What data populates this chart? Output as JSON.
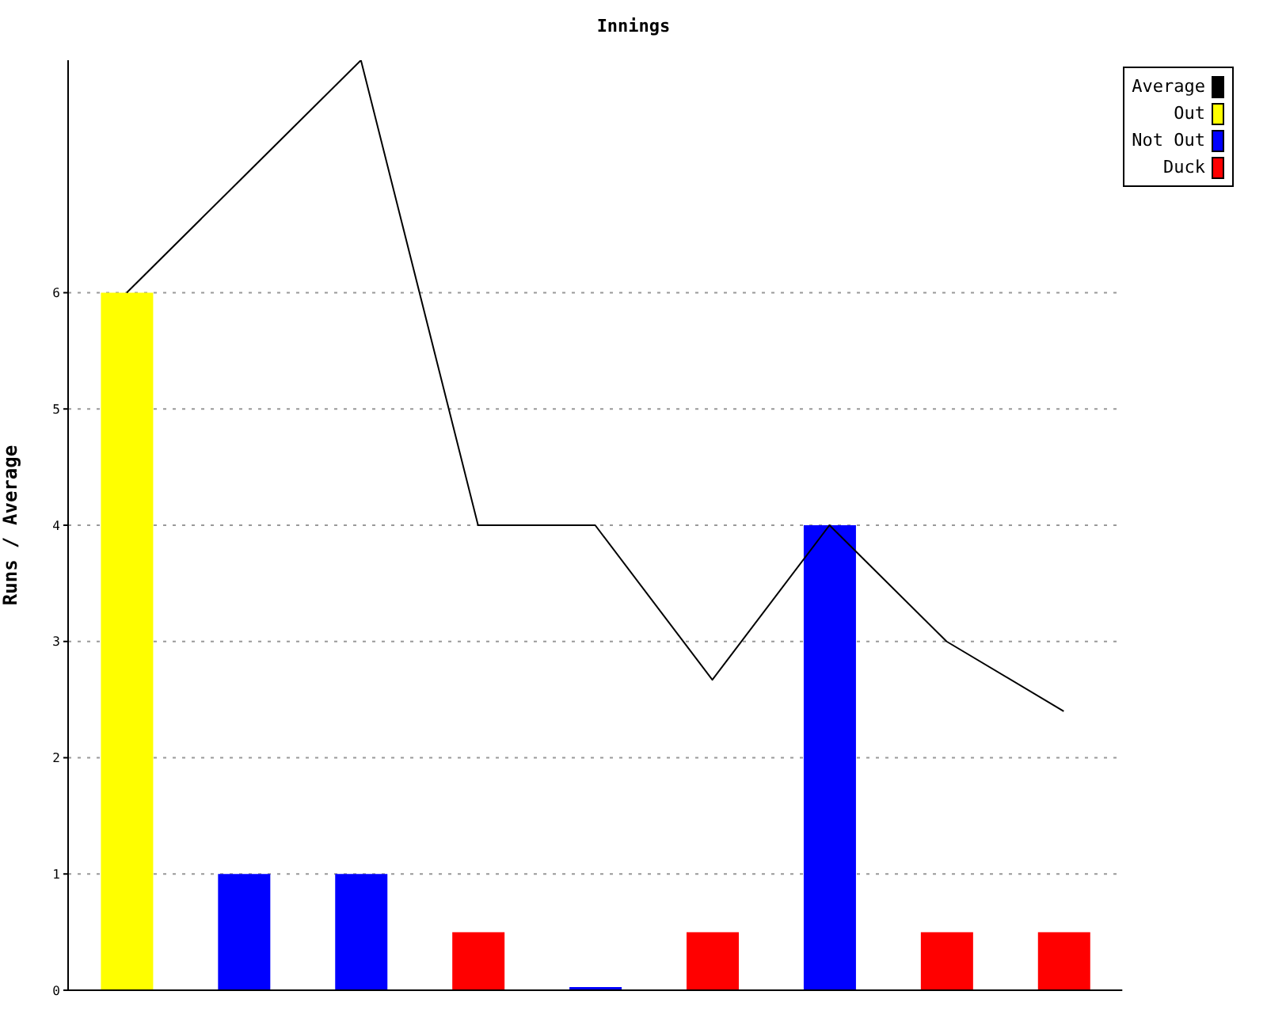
{
  "chart_data": {
    "type": "bar",
    "title": "Innings",
    "ylabel": "Runs / Average",
    "categories": [
      null,
      null,
      null,
      null,
      null,
      null,
      null,
      null,
      null
    ],
    "stacked": true,
    "ylim": [
      0,
      8
    ],
    "yticks": [
      0,
      1,
      2,
      3,
      4,
      5,
      6
    ],
    "grid": "y",
    "legend": "top right",
    "series": [
      {
        "name": "Average",
        "type": "line",
        "color": "#000000",
        "marker": "none",
        "values": [
          6,
          7,
          8,
          4,
          4,
          2.67,
          4,
          3,
          2.4
        ]
      },
      {
        "name": "Out",
        "color": "#ffff00",
        "values": [
          6,
          null,
          null,
          null,
          null,
          null,
          null,
          null,
          null
        ]
      },
      {
        "name": "Not Out",
        "color": "#0000ff",
        "values": [
          null,
          1,
          1,
          null,
          0,
          null,
          4,
          null,
          null
        ]
      },
      {
        "name": "Duck",
        "color": "#ff0000",
        "values": [
          null,
          null,
          null,
          0.5,
          null,
          0.5,
          null,
          0.5,
          0.5
        ]
      }
    ]
  }
}
